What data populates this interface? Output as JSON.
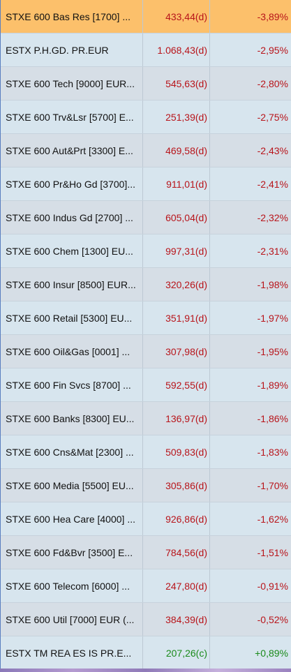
{
  "rows": [
    {
      "name": "STXE 600 Bas Res [1700] ...",
      "price": "433,44(d)",
      "change": "-3,89%",
      "dir": "neg",
      "selected": true
    },
    {
      "name": "ESTX P.H.GD. PR.EUR",
      "price": "1.068,43(d)",
      "change": "-2,95%",
      "dir": "neg"
    },
    {
      "name": "STXE 600 Tech [9000] EUR...",
      "price": "545,63(d)",
      "change": "-2,80%",
      "dir": "neg"
    },
    {
      "name": "STXE 600 Trv&Lsr [5700] E...",
      "price": "251,39(d)",
      "change": "-2,75%",
      "dir": "neg"
    },
    {
      "name": "STXE 600 Aut&Prt [3300] E...",
      "price": "469,58(d)",
      "change": "-2,43%",
      "dir": "neg"
    },
    {
      "name": "STXE 600 Pr&Ho Gd [3700]...",
      "price": "911,01(d)",
      "change": "-2,41%",
      "dir": "neg"
    },
    {
      "name": "STXE 600 Indus Gd [2700] ...",
      "price": "605,04(d)",
      "change": "-2,32%",
      "dir": "neg"
    },
    {
      "name": "STXE 600 Chem [1300] EU...",
      "price": "997,31(d)",
      "change": "-2,31%",
      "dir": "neg"
    },
    {
      "name": "STXE 600 Insur [8500] EUR...",
      "price": "320,26(d)",
      "change": "-1,98%",
      "dir": "neg"
    },
    {
      "name": "STXE 600 Retail [5300] EU...",
      "price": "351,91(d)",
      "change": "-1,97%",
      "dir": "neg"
    },
    {
      "name": "STXE 600 Oil&Gas [0001] ...",
      "price": "307,98(d)",
      "change": "-1,95%",
      "dir": "neg"
    },
    {
      "name": "STXE 600 Fin Svcs [8700] ...",
      "price": "592,55(d)",
      "change": "-1,89%",
      "dir": "neg"
    },
    {
      "name": "STXE 600 Banks [8300] EU...",
      "price": "136,97(d)",
      "change": "-1,86%",
      "dir": "neg"
    },
    {
      "name": "STXE 600 Cns&Mat [2300] ...",
      "price": "509,83(d)",
      "change": "-1,83%",
      "dir": "neg"
    },
    {
      "name": "STXE 600 Media [5500] EU...",
      "price": "305,86(d)",
      "change": "-1,70%",
      "dir": "neg"
    },
    {
      "name": "STXE 600 Hea Care [4000] ...",
      "price": "926,86(d)",
      "change": "-1,62%",
      "dir": "neg"
    },
    {
      "name": "STXE 600 Fd&Bvr [3500] E...",
      "price": "784,56(d)",
      "change": "-1,51%",
      "dir": "neg"
    },
    {
      "name": "STXE 600 Telecom [6000] ...",
      "price": "247,80(d)",
      "change": "-0,91%",
      "dir": "neg"
    },
    {
      "name": "STXE 600 Util [7000] EUR (...",
      "price": "384,39(d)",
      "change": "-0,52%",
      "dir": "neg"
    },
    {
      "name": "ESTX TM REA ES IS PR.E...",
      "price": "207,26(c)",
      "change": "+0,89%",
      "dir": "pos"
    }
  ],
  "colors": {
    "negative": "#b8141a",
    "positive": "#1a8a1a",
    "selected_row": "#fcc06b"
  }
}
